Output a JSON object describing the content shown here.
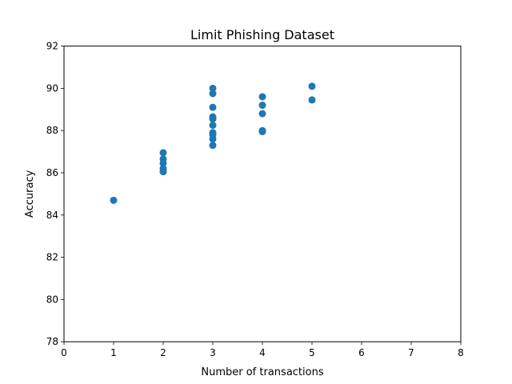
{
  "chart_data": {
    "type": "scatter",
    "title": "Limit Phishing Dataset",
    "xlabel": "Number of transactions",
    "ylabel": "Accuracy",
    "xlim": [
      0,
      8
    ],
    "ylim": [
      78,
      92
    ],
    "xticks": [
      0,
      1,
      2,
      3,
      4,
      5,
      6,
      7,
      8
    ],
    "yticks": [
      78,
      80,
      82,
      84,
      86,
      88,
      90,
      92
    ],
    "grid": false,
    "marker_color": "#1f77b4",
    "points": [
      {
        "x": 1,
        "y": 84.7
      },
      {
        "x": 2,
        "y": 86.95
      },
      {
        "x": 2,
        "y": 86.65
      },
      {
        "x": 2,
        "y": 86.45
      },
      {
        "x": 2,
        "y": 86.2
      },
      {
        "x": 2,
        "y": 86.05
      },
      {
        "x": 3,
        "y": 90.0
      },
      {
        "x": 3,
        "y": 89.75
      },
      {
        "x": 3,
        "y": 89.1
      },
      {
        "x": 3,
        "y": 88.65
      },
      {
        "x": 3,
        "y": 88.55
      },
      {
        "x": 3,
        "y": 88.25
      },
      {
        "x": 3,
        "y": 87.9
      },
      {
        "x": 3,
        "y": 87.8
      },
      {
        "x": 3,
        "y": 87.6
      },
      {
        "x": 3,
        "y": 87.3
      },
      {
        "x": 4,
        "y": 89.6
      },
      {
        "x": 4,
        "y": 89.2
      },
      {
        "x": 4,
        "y": 88.8
      },
      {
        "x": 4,
        "y": 88.0
      },
      {
        "x": 4,
        "y": 87.95
      },
      {
        "x": 5,
        "y": 90.1
      },
      {
        "x": 5,
        "y": 89.45
      }
    ]
  }
}
